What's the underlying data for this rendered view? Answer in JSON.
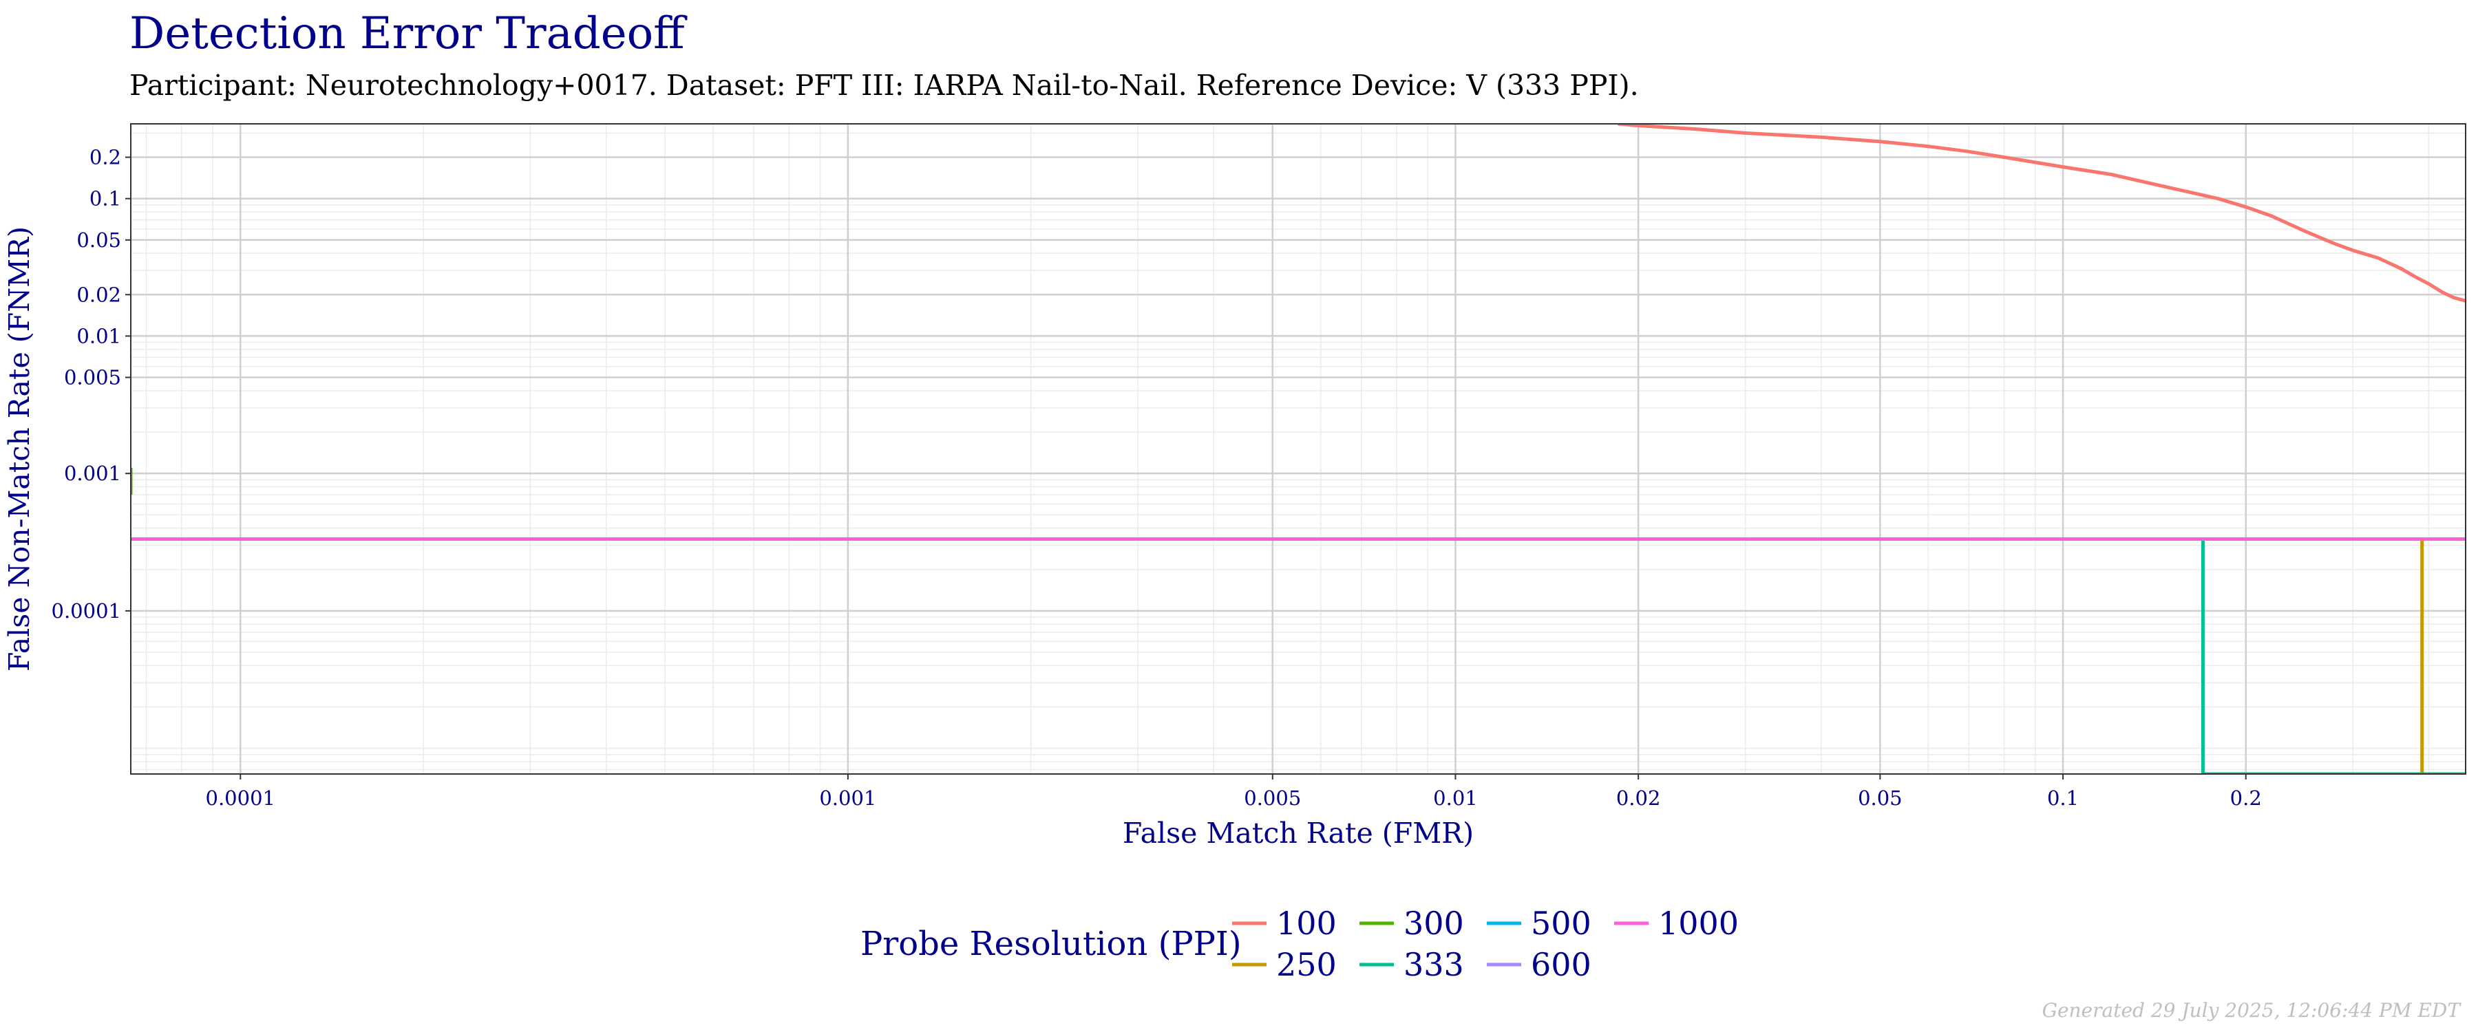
{
  "title": "Detection Error Tradeoff",
  "subtitle": "Participant: Neurotechnology+0017. Dataset: PFT III: IARPA Nail-to-Nail. Reference Device: V (333 PPI).",
  "footer": "Generated 29 July 2025, 12:06:44 PM EDT",
  "chart_data": {
    "type": "line",
    "title": "Detection Error Tradeoff",
    "xlabel": "False Match Rate (FMR)",
    "ylabel": "False Non-Match Rate (FNMR)",
    "x_scale": "log",
    "y_scale": "log",
    "xlim": [
      6.6e-05,
      0.46
    ],
    "ylim": [
      6.5e-06,
      0.35
    ],
    "x_ticks": [
      0.0001,
      0.001,
      0.005,
      0.01,
      0.02,
      0.05,
      0.1,
      0.2
    ],
    "x_tick_labels": [
      "0.0001",
      "0.001",
      "0.005",
      "0.01",
      "0.02",
      "0.05",
      "0.1",
      "0.2"
    ],
    "y_ticks": [
      0.0001,
      0.001,
      0.005,
      0.01,
      0.02,
      0.05,
      0.1,
      0.2
    ],
    "y_tick_labels": [
      "0.0001",
      "0.001",
      "0.005",
      "0.01",
      "0.02",
      "0.05",
      "0.1",
      "0.2"
    ],
    "grid": true,
    "legend": {
      "title": "Probe Resolution (PPI)",
      "position": "bottom",
      "entries": [
        "100",
        "250",
        "300",
        "333",
        "500",
        "600",
        "1000"
      ]
    },
    "series": [
      {
        "name": "100",
        "color": "#F8766D",
        "points": [
          [
            0.0185,
            0.35
          ],
          [
            0.02,
            0.34
          ],
          [
            0.025,
            0.32
          ],
          [
            0.03,
            0.3
          ],
          [
            0.04,
            0.28
          ],
          [
            0.05,
            0.26
          ],
          [
            0.06,
            0.24
          ],
          [
            0.07,
            0.22
          ],
          [
            0.08,
            0.2
          ],
          [
            0.1,
            0.17
          ],
          [
            0.12,
            0.15
          ],
          [
            0.15,
            0.12
          ],
          [
            0.18,
            0.1
          ],
          [
            0.2,
            0.087
          ],
          [
            0.22,
            0.075
          ],
          [
            0.25,
            0.058
          ],
          [
            0.28,
            0.047
          ],
          [
            0.3,
            0.042
          ],
          [
            0.33,
            0.037
          ],
          [
            0.36,
            0.031
          ],
          [
            0.38,
            0.027
          ],
          [
            0.4,
            0.024
          ],
          [
            0.42,
            0.021
          ],
          [
            0.44,
            0.019
          ],
          [
            0.46,
            0.018
          ]
        ]
      },
      {
        "name": "250",
        "color": "#C49A00",
        "points": [
          [
            6.6e-05,
            0.000333
          ],
          [
            0.39,
            0.000333
          ],
          [
            0.39,
            6.5e-06
          ],
          [
            0.46,
            6.5e-06
          ]
        ]
      },
      {
        "name": "300",
        "color": "#53B400",
        "points": [
          [
            6.6e-05,
            0.0007
          ],
          [
            6.6e-05,
            0.0011
          ]
        ]
      },
      {
        "name": "333",
        "color": "#00C094",
        "points": [
          [
            6.6e-05,
            0.000333
          ],
          [
            0.17,
            0.000333
          ],
          [
            0.17,
            6.5e-06
          ],
          [
            0.46,
            6.5e-06
          ]
        ]
      },
      {
        "name": "500",
        "color": "#00B6EB",
        "points": [
          [
            6.6e-05,
            0.000333
          ],
          [
            0.46,
            0.000333
          ]
        ]
      },
      {
        "name": "600",
        "color": "#A58AFF",
        "points": [
          [
            6.6e-05,
            0.000333
          ],
          [
            0.46,
            0.000333
          ]
        ]
      },
      {
        "name": "1000",
        "color": "#FB61D7",
        "points": [
          [
            6.6e-05,
            0.000333
          ],
          [
            0.46,
            0.000333
          ]
        ]
      }
    ]
  }
}
